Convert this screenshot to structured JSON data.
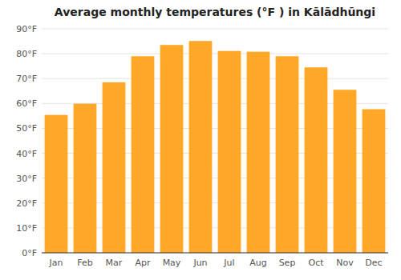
{
  "chart_data": {
    "type": "bar",
    "title": "Average monthly temperatures (°F ) in Kālādhūngi",
    "categories": [
      "Jan",
      "Feb",
      "Mar",
      "Apr",
      "May",
      "Jun",
      "Jul",
      "Aug",
      "Sep",
      "Oct",
      "Nov",
      "Dec"
    ],
    "values": [
      55.4,
      59.9,
      68.5,
      79.0,
      83.5,
      85.1,
      81.1,
      80.8,
      79.0,
      74.5,
      65.5,
      57.7
    ],
    "color": "#FFA726",
    "ylim": [
      0,
      90
    ],
    "yticks": [
      {
        "value": 0,
        "label": "0°F"
      },
      {
        "value": 10,
        "label": "10°F"
      },
      {
        "value": 20,
        "label": "20°F"
      },
      {
        "value": 30,
        "label": "30°F"
      },
      {
        "value": 40,
        "label": "40°F"
      },
      {
        "value": 50,
        "label": "50°F"
      },
      {
        "value": 60,
        "label": "60°F"
      },
      {
        "value": 70,
        "label": "70°F"
      },
      {
        "value": 80,
        "label": "80°F"
      },
      {
        "value": 90,
        "label": "90°F"
      }
    ],
    "grid": true
  }
}
